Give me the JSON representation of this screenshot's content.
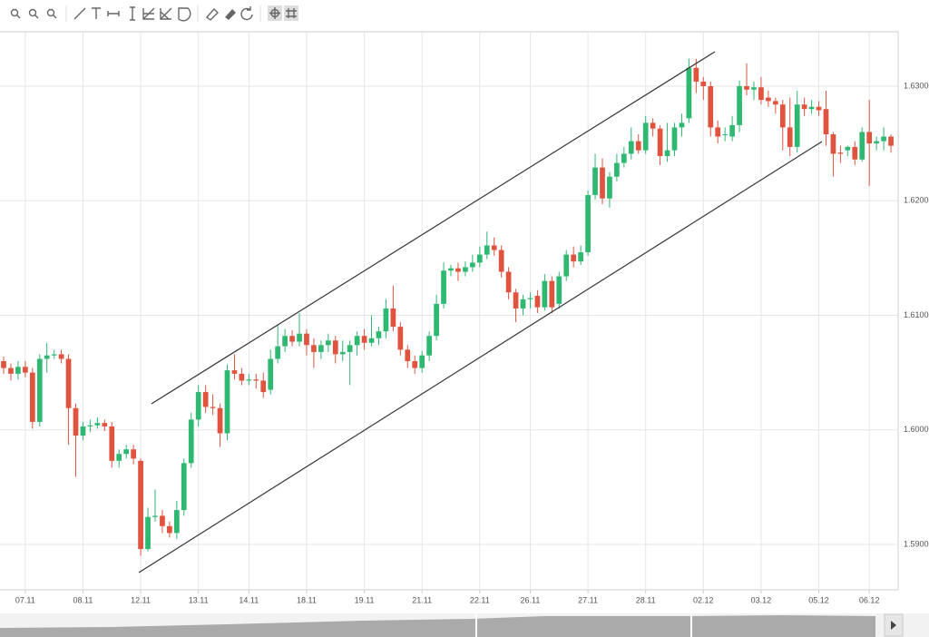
{
  "chart_data": {
    "type": "candlestick",
    "categories": [
      null,
      null,
      null,
      "07.11",
      null,
      null,
      null,
      null,
      null,
      null,
      null,
      "08.11",
      null,
      null,
      null,
      null,
      null,
      null,
      null,
      "12.11",
      null,
      null,
      null,
      null,
      null,
      null,
      null,
      "13.11",
      null,
      null,
      null,
      null,
      null,
      null,
      "14.11",
      null,
      null,
      null,
      null,
      null,
      null,
      null,
      "18.11",
      null,
      null,
      null,
      null,
      null,
      null,
      null,
      "19.11",
      null,
      null,
      null,
      null,
      null,
      null,
      null,
      "21.11",
      null,
      null,
      null,
      null,
      null,
      null,
      null,
      "22.11",
      null,
      null,
      null,
      null,
      null,
      null,
      "26.11",
      null,
      null,
      null,
      null,
      null,
      null,
      null,
      "27.11",
      null,
      null,
      null,
      null,
      null,
      null,
      null,
      "28.11",
      null,
      null,
      null,
      null,
      null,
      null,
      null,
      "02.12",
      null,
      null,
      null,
      null,
      null,
      null,
      null,
      "03.12",
      null,
      null,
      null,
      null,
      null,
      null,
      null,
      "05.12",
      null,
      null,
      null,
      null,
      null,
      null,
      "06.12",
      null,
      null,
      null
    ],
    "open": [
      1.606,
      1.6054,
      1.6049,
      1.6055,
      1.605,
      1.6007,
      1.6062,
      1.6065,
      1.6066,
      1.6062,
      1.6019,
      1.5995,
      1.6003,
      1.6004,
      1.6006,
      1.6003,
      1.5973,
      1.5979,
      1.5983,
      1.5973,
      1.5896,
      1.5924,
      1.5925,
      1.5916,
      1.591,
      1.593,
      1.5971,
      1.6009,
      1.6033,
      1.602,
      1.6019,
      1.5997,
      1.6052,
      1.6049,
      1.6043,
      1.6044,
      1.6043,
      1.6035,
      1.6062,
      1.6073,
      1.6082,
      1.6077,
      1.6084,
      1.6074,
      1.6068,
      1.6074,
      1.6078,
      1.6066,
      1.6068,
      1.6074,
      1.6082,
      1.6076,
      1.608,
      1.6086,
      1.6106,
      1.609,
      1.607,
      1.606,
      1.6054,
      1.6065,
      1.6082,
      1.611,
      1.6139,
      1.6141,
      1.6138,
      1.6142,
      1.6146,
      1.6153,
      1.6161,
      1.6157,
      1.6138,
      1.612,
      1.6106,
      1.6114,
      1.6117,
      1.6107,
      1.613,
      1.611,
      1.6134,
      1.6153,
      1.6147,
      1.6155,
      1.6205,
      1.6229,
      1.6202,
      1.6221,
      1.6233,
      1.6241,
      1.6252,
      1.6244,
      1.6268,
      1.6263,
      1.6239,
      1.6244,
      1.6264,
      1.6272,
      1.6316,
      1.6304,
      1.63,
      1.6264,
      1.6258,
      1.6256,
      1.6266,
      1.63,
      1.6297,
      1.6299,
      1.629,
      1.6287,
      1.6284,
      1.6264,
      1.6247,
      1.6284,
      1.628,
      1.6282,
      1.628,
      1.6258,
      1.6242,
      1.6244,
      1.6247,
      1.6236,
      1.626,
      1.625,
      1.6252,
      1.6256
    ],
    "high": [
      1.6064,
      1.6058,
      1.606,
      1.606,
      1.6054,
      1.6066,
      1.6076,
      1.607,
      1.607,
      1.6066,
      1.6023,
      1.6007,
      1.6009,
      1.6011,
      1.6009,
      1.6007,
      1.5983,
      1.5987,
      1.5987,
      1.5975,
      1.5932,
      1.5948,
      1.593,
      1.592,
      1.5938,
      1.5975,
      1.6015,
      1.6039,
      1.6039,
      1.6031,
      1.6023,
      1.6057,
      1.6066,
      1.6054,
      1.6049,
      1.6049,
      1.605,
      1.607,
      1.6092,
      1.6088,
      1.6087,
      1.6102,
      1.6088,
      1.608,
      1.6078,
      1.6084,
      1.6082,
      1.6078,
      1.6078,
      1.6086,
      1.6088,
      1.61,
      1.609,
      1.6114,
      1.6126,
      1.6094,
      1.6074,
      1.6065,
      1.6069,
      1.6086,
      1.6118,
      1.6146,
      1.6144,
      1.6146,
      1.6147,
      1.6153,
      1.616,
      1.6173,
      1.6168,
      1.6161,
      1.6142,
      1.6123,
      1.6118,
      1.612,
      1.6122,
      1.6136,
      1.6134,
      1.6138,
      1.6157,
      1.616,
      1.6161,
      1.6209,
      1.6241,
      1.6237,
      1.6225,
      1.6241,
      1.6247,
      1.6264,
      1.6258,
      1.6274,
      1.6272,
      1.6266,
      1.6268,
      1.6268,
      1.6276,
      1.6324,
      1.6324,
      1.6308,
      1.6304,
      1.627,
      1.6264,
      1.6274,
      1.6305,
      1.632,
      1.6304,
      1.6308,
      1.6296,
      1.629,
      1.6288,
      1.629,
      1.6296,
      1.629,
      1.6288,
      1.6287,
      1.6296,
      1.626,
      1.6248,
      1.6248,
      1.6252,
      1.6264,
      1.6288,
      1.6256,
      1.6264,
      1.6258
    ],
    "low": [
      1.6049,
      1.6043,
      1.6044,
      1.6046,
      1.6001,
      1.6003,
      1.605,
      1.6062,
      1.6058,
      1.5987,
      1.5959,
      1.5991,
      1.5998,
      1.6001,
      1.5999,
      1.5967,
      1.5967,
      1.5975,
      1.597,
      1.589,
      1.5894,
      1.592,
      1.591,
      1.5906,
      1.5905,
      1.5925,
      1.5967,
      1.6003,
      1.6015,
      1.6013,
      1.5985,
      1.5991,
      1.6044,
      1.6039,
      1.6039,
      1.6036,
      1.6028,
      1.6031,
      1.6058,
      1.6068,
      1.6073,
      1.6073,
      1.6065,
      1.6054,
      1.6062,
      1.6068,
      1.6058,
      1.606,
      1.6039,
      1.6065,
      1.607,
      1.6073,
      1.6074,
      1.608,
      1.6086,
      1.6065,
      1.6054,
      1.6049,
      1.605,
      1.606,
      1.6078,
      1.6106,
      1.6134,
      1.613,
      1.6134,
      1.6138,
      1.6142,
      1.6149,
      1.6152,
      1.6133,
      1.6114,
      1.6094,
      1.61,
      1.6106,
      1.6102,
      1.6104,
      1.6102,
      1.6106,
      1.613,
      1.6142,
      1.6144,
      1.6152,
      1.6201,
      1.6197,
      1.6194,
      1.6217,
      1.6229,
      1.6236,
      1.6241,
      1.6241,
      1.6256,
      1.6231,
      1.6234,
      1.6239,
      1.6256,
      1.6268,
      1.6294,
      1.6288,
      1.6256,
      1.625,
      1.6252,
      1.6252,
      1.626,
      1.6292,
      1.6288,
      1.6284,
      1.6282,
      1.6276,
      1.6244,
      1.6239,
      1.6242,
      1.6274,
      1.6276,
      1.6274,
      1.6248,
      1.6221,
      1.6233,
      1.6239,
      1.6231,
      1.6234,
      1.6213,
      1.6244,
      1.6244,
      1.6242
    ],
    "close": [
      1.6054,
      1.6049,
      1.6055,
      1.605,
      1.6007,
      1.6062,
      1.6065,
      1.6066,
      1.6062,
      1.6019,
      1.5995,
      1.6003,
      1.6004,
      1.6006,
      1.6003,
      1.5973,
      1.5979,
      1.5983,
      1.5975,
      1.5896,
      1.5924,
      1.5925,
      1.5916,
      1.591,
      1.593,
      1.5971,
      1.6009,
      1.6033,
      1.602,
      1.6019,
      1.5997,
      1.6052,
      1.6049,
      1.6043,
      1.6044,
      1.6043,
      1.6033,
      1.6062,
      1.6073,
      1.6082,
      1.6077,
      1.6084,
      1.6074,
      1.6068,
      1.6074,
      1.6078,
      1.6066,
      1.6068,
      1.6074,
      1.6082,
      1.6076,
      1.608,
      1.6086,
      1.6106,
      1.609,
      1.607,
      1.606,
      1.6054,
      1.6065,
      1.6082,
      1.611,
      1.6139,
      1.6141,
      1.6138,
      1.6142,
      1.6146,
      1.6153,
      1.6161,
      1.6157,
      1.6138,
      1.612,
      1.6106,
      1.6114,
      1.6115,
      1.6107,
      1.613,
      1.6107,
      1.6134,
      1.6153,
      1.6147,
      1.6155,
      1.6205,
      1.6229,
      1.6202,
      1.6221,
      1.6233,
      1.6241,
      1.6252,
      1.6244,
      1.6268,
      1.6263,
      1.6239,
      1.6244,
      1.6264,
      1.6268,
      1.6316,
      1.6304,
      1.63,
      1.6264,
      1.6256,
      1.6258,
      1.6266,
      1.63,
      1.6297,
      1.6299,
      1.6288,
      1.6287,
      1.6284,
      1.6264,
      1.6247,
      1.6284,
      1.628,
      1.6282,
      1.6279,
      1.6258,
      1.6241,
      1.6241,
      1.6247,
      1.6236,
      1.626,
      1.625,
      1.6252,
      1.6256,
      1.6248
    ],
    "up_color": "#2eb872",
    "down_color": "#e0533f",
    "ylim": [
      1.58604,
      1.63475
    ],
    "yticks": [
      {
        "value": 1.59,
        "label": "1.59000"
      },
      {
        "value": 1.6,
        "label": "1.60000"
      },
      {
        "value": 1.61,
        "label": "1.61000"
      },
      {
        "value": 1.62,
        "label": "1.62000"
      },
      {
        "value": 1.63,
        "label": "1.63000"
      }
    ],
    "grid": true
  }
}
